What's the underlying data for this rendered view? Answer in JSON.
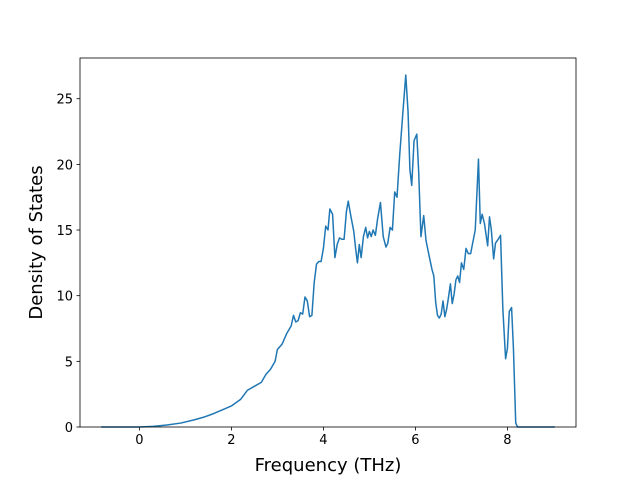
{
  "chart_data": {
    "type": "line",
    "x_label": "Frequency (THz)",
    "y_label": "Density of States",
    "xlim": [
      -1.29,
      9.49
    ],
    "ylim": [
      0,
      28.1
    ],
    "xticks": [
      0,
      2,
      4,
      6,
      8
    ],
    "yticks": [
      0,
      5,
      10,
      15,
      20,
      25
    ],
    "grid": false,
    "series": [
      {
        "color": "#1f77b4",
        "x": [
          -0.83,
          0,
          0.3,
          0.6,
          0.9,
          1.2,
          1.4,
          1.6,
          1.8,
          2.0,
          2.2,
          2.35,
          2.5,
          2.65,
          2.75,
          2.85,
          2.95,
          3.0,
          3.1,
          3.2,
          3.3,
          3.35,
          3.4,
          3.45,
          3.5,
          3.55,
          3.6,
          3.65,
          3.7,
          3.75,
          3.8,
          3.85,
          3.9,
          3.95,
          4.0,
          4.05,
          4.1,
          4.14,
          4.2,
          4.25,
          4.3,
          4.35,
          4.4,
          4.45,
          4.5,
          4.54,
          4.6,
          4.66,
          4.7,
          4.74,
          4.78,
          4.82,
          4.87,
          4.92,
          4.96,
          5.0,
          5.04,
          5.08,
          5.13,
          5.18,
          5.24,
          5.3,
          5.36,
          5.4,
          5.45,
          5.5,
          5.55,
          5.6,
          5.66,
          5.72,
          5.79,
          5.84,
          5.88,
          5.92,
          5.97,
          6.03,
          6.07,
          6.12,
          6.18,
          6.23,
          6.3,
          6.36,
          6.4,
          6.44,
          6.48,
          6.52,
          6.56,
          6.6,
          6.64,
          6.68,
          6.72,
          6.76,
          6.8,
          6.84,
          6.88,
          6.92,
          6.96,
          7.0,
          7.05,
          7.1,
          7.15,
          7.2,
          7.3,
          7.37,
          7.41,
          7.45,
          7.5,
          7.57,
          7.61,
          7.65,
          7.7,
          7.74,
          7.8,
          7.85,
          7.9,
          7.96,
          8.0,
          8.04,
          8.09,
          8.13,
          8.18,
          8.22,
          9.03
        ],
        "values": [
          0,
          0,
          0.05,
          0.15,
          0.3,
          0.55,
          0.75,
          1.0,
          1.3,
          1.6,
          2.1,
          2.8,
          3.1,
          3.4,
          4.0,
          4.4,
          5.0,
          5.9,
          6.3,
          7.1,
          7.7,
          8.5,
          8.0,
          8.1,
          8.7,
          8.6,
          9.9,
          9.6,
          8.4,
          8.5,
          11.0,
          12.4,
          12.6,
          12.6,
          13.6,
          15.3,
          15.0,
          16.6,
          16.2,
          12.9,
          13.9,
          14.4,
          14.3,
          14.3,
          16.4,
          17.2,
          16.0,
          14.9,
          13.6,
          12.5,
          13.9,
          12.9,
          14.5,
          15.2,
          14.4,
          14.9,
          14.5,
          15.0,
          14.6,
          15.9,
          17.1,
          14.5,
          13.7,
          14.0,
          15.2,
          15.0,
          17.9,
          17.5,
          20.8,
          23.6,
          26.8,
          24.0,
          19.6,
          18.4,
          21.8,
          22.3,
          19.5,
          14.5,
          16.1,
          14.2,
          13.0,
          12.0,
          11.5,
          9.5,
          8.5,
          8.3,
          8.6,
          9.6,
          8.4,
          9.0,
          9.9,
          10.9,
          9.4,
          10.1,
          11.2,
          11.5,
          11.0,
          12.5,
          12.0,
          13.6,
          13.2,
          13.2,
          15.0,
          20.4,
          15.5,
          16.2,
          15.5,
          13.8,
          16.0,
          15.0,
          12.8,
          14.0,
          14.3,
          14.6,
          9.0,
          5.2,
          6.0,
          8.8,
          9.1,
          6.0,
          0.3,
          0,
          0
        ]
      }
    ]
  }
}
